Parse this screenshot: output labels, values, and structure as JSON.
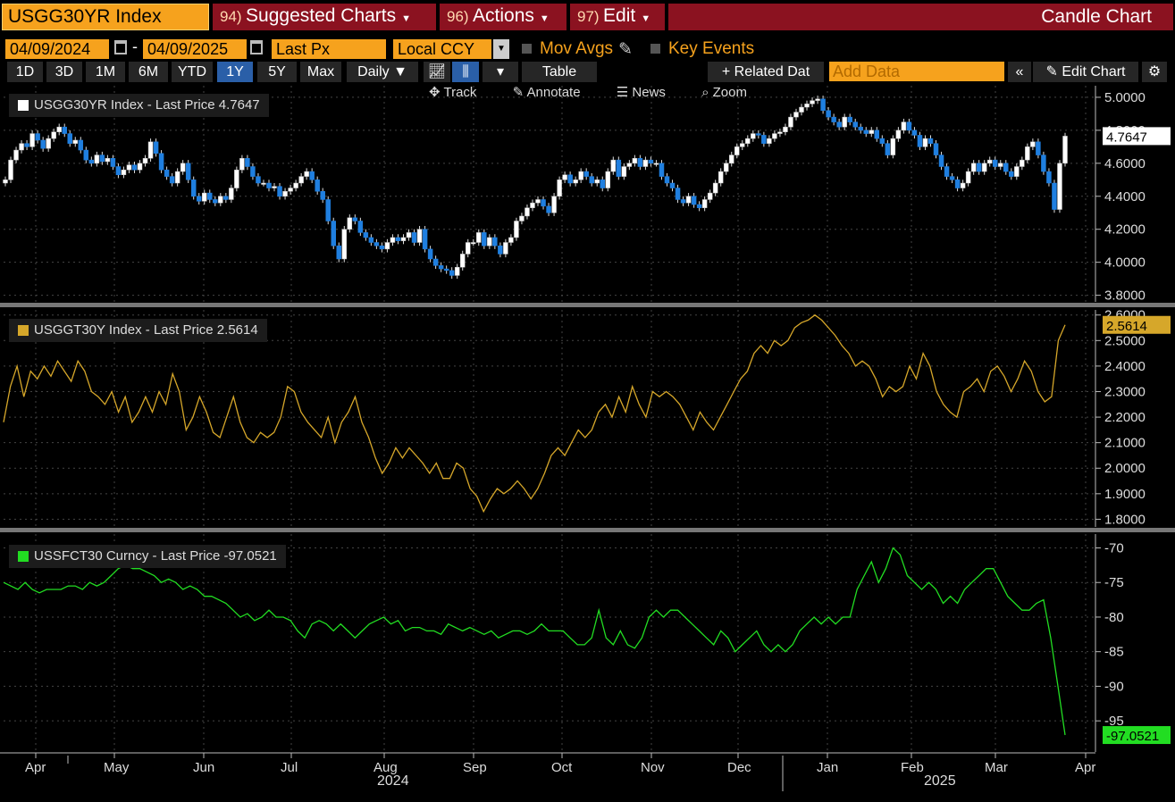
{
  "header": {
    "ticker": "USGG30YR Index",
    "menus": [
      {
        "num": "94)",
        "label": "Suggested Charts"
      },
      {
        "num": "96)",
        "label": "Actions"
      },
      {
        "num": "97)",
        "label": "Edit"
      }
    ],
    "chart_type_label": "Candle Chart"
  },
  "controls": {
    "start_date": "04/09/2024",
    "end_date": "04/09/2025",
    "date_sep": "-",
    "price_field": "Last Px",
    "currency": "Local CCY",
    "mov_avgs": "Mov Avgs",
    "key_events": "Key Events",
    "periods": [
      "1D",
      "3D",
      "1M",
      "6M",
      "YTD",
      "1Y",
      "5Y",
      "Max"
    ],
    "selected_period": "1Y",
    "frequency": "Daily",
    "table_label": "Table",
    "related_label": "+ Related Dat",
    "add_data_placeholder": "Add Data",
    "edit_chart_label": "Edit Chart",
    "tools": [
      "Track",
      "Annotate",
      "News",
      "Zoom"
    ]
  },
  "colors": {
    "orange": "#f6a21d",
    "candle_up": "#ffffff",
    "candle_down": "#1f7fe0",
    "gold": "#d6a72a",
    "green": "#22dd22",
    "menu_red": "#8b1220"
  },
  "x_axis": {
    "months": [
      "Apr",
      "May",
      "Jun",
      "Jul",
      "Aug",
      "Sep",
      "Oct",
      "Nov",
      "Dec",
      "Jan",
      "Feb",
      "Mar",
      "Apr"
    ],
    "years": [
      "2024",
      "2025"
    ]
  },
  "chart_data": [
    {
      "type": "candlestick",
      "legend": "USGG30YR Index - Last Price 4.7647",
      "last_label": "4.7647",
      "ylim": [
        3.76,
        5.07
      ],
      "yticks": [
        "5.0000",
        "4.8000",
        "4.6000",
        "4.4000",
        "4.2000",
        "4.0000",
        "3.8000"
      ],
      "series_close": [
        4.5,
        4.62,
        4.68,
        4.72,
        4.7,
        4.78,
        4.74,
        4.69,
        4.75,
        4.79,
        4.82,
        4.78,
        4.72,
        4.74,
        4.68,
        4.62,
        4.6,
        4.65,
        4.61,
        4.63,
        4.58,
        4.53,
        4.56,
        4.59,
        4.56,
        4.6,
        4.63,
        4.73,
        4.66,
        4.56,
        4.52,
        4.48,
        4.55,
        4.6,
        4.5,
        4.4,
        4.37,
        4.42,
        4.38,
        4.36,
        4.4,
        4.38,
        4.45,
        4.56,
        4.63,
        4.58,
        4.52,
        4.48,
        4.48,
        4.45,
        4.46,
        4.4,
        4.43,
        4.45,
        4.48,
        4.52,
        4.55,
        4.5,
        4.43,
        4.38,
        4.25,
        4.1,
        4.02,
        4.2,
        4.27,
        4.25,
        4.18,
        4.15,
        4.12,
        4.1,
        4.08,
        4.12,
        4.15,
        4.13,
        4.15,
        4.18,
        4.12,
        4.2,
        4.08,
        4.02,
        3.98,
        3.96,
        3.95,
        3.92,
        3.97,
        4.05,
        4.12,
        4.12,
        4.18,
        4.1,
        4.15,
        4.1,
        4.05,
        4.12,
        4.15,
        4.25,
        4.28,
        4.33,
        4.36,
        4.38,
        4.34,
        4.3,
        4.4,
        4.5,
        4.53,
        4.48,
        4.5,
        4.55,
        4.52,
        4.48,
        4.5,
        4.45,
        4.55,
        4.62,
        4.52,
        4.58,
        4.6,
        4.63,
        4.58,
        4.62,
        4.6,
        4.6,
        4.52,
        4.48,
        4.45,
        4.38,
        4.36,
        4.4,
        4.35,
        4.33,
        4.38,
        4.42,
        4.48,
        4.55,
        4.6,
        4.65,
        4.7,
        4.72,
        4.75,
        4.78,
        4.77,
        4.72,
        4.75,
        4.78,
        4.79,
        4.82,
        4.88,
        4.91,
        4.94,
        4.96,
        4.98,
        4.99,
        4.92,
        4.88,
        4.85,
        4.82,
        4.88,
        4.85,
        4.82,
        4.8,
        4.78,
        4.8,
        4.75,
        4.72,
        4.65,
        4.75,
        4.8,
        4.85,
        4.8,
        4.77,
        4.7,
        4.75,
        4.72,
        4.65,
        4.58,
        4.52,
        4.5,
        4.45,
        4.48,
        4.55,
        4.6,
        4.55,
        4.6,
        4.62,
        4.58,
        4.6,
        4.55,
        4.52,
        4.58,
        4.62,
        4.7,
        4.73,
        4.65,
        4.55,
        4.48,
        4.32,
        4.6,
        4.7647
      ],
      "ohlc_samples": [
        {
          "date": "2024-04-09",
          "open": 4.48,
          "high": 4.55,
          "low": 4.46,
          "close": 4.5
        },
        {
          "date": "2025-04-09",
          "open": 4.6,
          "high": 4.77,
          "low": 4.58,
          "close": 4.7647
        }
      ]
    },
    {
      "type": "line",
      "legend": "USGGT30Y Index - Last Price 2.5614",
      "last_label": "2.5614",
      "ylim": [
        1.77,
        2.62
      ],
      "yticks": [
        "2.6000",
        "2.5000",
        "2.4000",
        "2.3000",
        "2.2000",
        "2.1000",
        "2.0000",
        "1.9000",
        "1.8000"
      ],
      "values": [
        2.18,
        2.32,
        2.4,
        2.28,
        2.38,
        2.35,
        2.4,
        2.36,
        2.42,
        2.38,
        2.34,
        2.42,
        2.38,
        2.3,
        2.28,
        2.25,
        2.3,
        2.22,
        2.28,
        2.18,
        2.22,
        2.28,
        2.22,
        2.3,
        2.25,
        2.37,
        2.3,
        2.15,
        2.2,
        2.28,
        2.22,
        2.14,
        2.12,
        2.2,
        2.28,
        2.18,
        2.12,
        2.1,
        2.14,
        2.12,
        2.14,
        2.2,
        2.32,
        2.3,
        2.22,
        2.18,
        2.15,
        2.12,
        2.2,
        2.1,
        2.18,
        2.22,
        2.28,
        2.18,
        2.12,
        2.04,
        1.98,
        2.02,
        2.08,
        2.04,
        2.08,
        2.05,
        2.02,
        1.98,
        2.02,
        1.96,
        1.96,
        2.02,
        2.0,
        1.92,
        1.89,
        1.83,
        1.88,
        1.92,
        1.9,
        1.92,
        1.95,
        1.92,
        1.88,
        1.92,
        1.98,
        2.05,
        2.08,
        2.05,
        2.1,
        2.15,
        2.12,
        2.15,
        2.22,
        2.25,
        2.2,
        2.28,
        2.22,
        2.32,
        2.25,
        2.2,
        2.3,
        2.28,
        2.3,
        2.28,
        2.25,
        2.2,
        2.15,
        2.22,
        2.18,
        2.15,
        2.2,
        2.25,
        2.3,
        2.35,
        2.38,
        2.45,
        2.48,
        2.45,
        2.5,
        2.48,
        2.5,
        2.55,
        2.57,
        2.58,
        2.6,
        2.58,
        2.55,
        2.52,
        2.48,
        2.45,
        2.4,
        2.42,
        2.4,
        2.35,
        2.28,
        2.32,
        2.3,
        2.32,
        2.4,
        2.35,
        2.45,
        2.4,
        2.3,
        2.25,
        2.22,
        2.2,
        2.3,
        2.32,
        2.35,
        2.3,
        2.38,
        2.4,
        2.36,
        2.3,
        2.35,
        2.42,
        2.38,
        2.3,
        2.26,
        2.28,
        2.5,
        2.5614
      ]
    },
    {
      "type": "line",
      "legend": "USSFCT30 Curncy - Last Price -97.0521",
      "last_label": "-97.0521",
      "ylim": [
        -99.5,
        -68.0
      ],
      "yticks": [
        "-70",
        "-75",
        "-80",
        "-85",
        "-90",
        "-95"
      ],
      "values": [
        -75,
        -75.5,
        -76,
        -75,
        -76,
        -76.5,
        -76,
        -76,
        -76,
        -75.5,
        -75.5,
        -76,
        -75,
        -75.5,
        -75,
        -74,
        -73,
        -72.5,
        -73,
        -73,
        -73.5,
        -74,
        -75,
        -74.5,
        -75,
        -76,
        -75.5,
        -76,
        -77,
        -77,
        -77.5,
        -78,
        -79,
        -80,
        -79.5,
        -80.5,
        -80,
        -79,
        -80,
        -80,
        -80.5,
        -82,
        -83,
        -81,
        -80.5,
        -81,
        -82,
        -81,
        -82,
        -83,
        -82,
        -81,
        -80.5,
        -80,
        -81,
        -80.5,
        -82,
        -81.5,
        -81.5,
        -82,
        -82,
        -82.5,
        -81,
        -81.5,
        -82,
        -81.5,
        -82,
        -82.5,
        -82,
        -83,
        -82.5,
        -82,
        -82,
        -82.5,
        -82,
        -81,
        -82,
        -82,
        -82,
        -83,
        -84,
        -84,
        -83,
        -79,
        -83,
        -84,
        -82,
        -84,
        -84.5,
        -83,
        -80,
        -79,
        -80,
        -79,
        -79,
        -80,
        -81,
        -82,
        -83,
        -84,
        -82,
        -83,
        -85,
        -84,
        -83,
        -82,
        -84,
        -85,
        -84,
        -85,
        -84,
        -82,
        -81,
        -80,
        -81,
        -80,
        -81,
        -80,
        -80,
        -76,
        -74,
        -72,
        -75,
        -73,
        -70,
        -71,
        -74,
        -75,
        -76,
        -75,
        -76,
        -78,
        -77,
        -78,
        -76,
        -75,
        -74,
        -73,
        -73,
        -75,
        -77,
        -78,
        -79,
        -79,
        -78,
        -77.5,
        -83,
        -90,
        -97.0521
      ]
    }
  ]
}
